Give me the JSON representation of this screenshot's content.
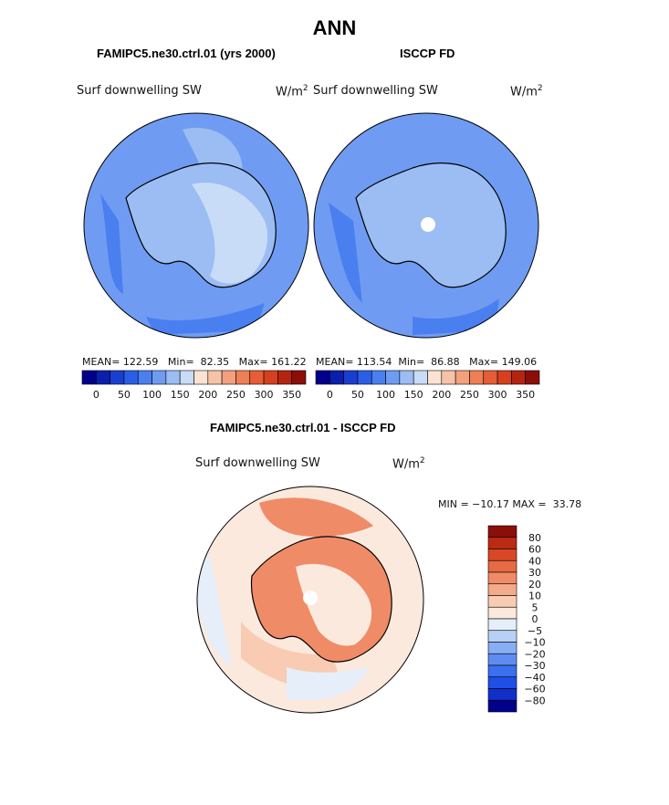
{
  "figure": {
    "title": "ANN"
  },
  "panels": [
    {
      "id": "model",
      "title": "FAMIPC5.ne30.ctrl.01 (yrs 2000)",
      "label": "Surf downwelling SW",
      "units_base": "W/m",
      "units_exp": "2",
      "stats": {
        "mean_label": "MEAN=",
        "mean": "122.59",
        "min_label": "Min=",
        "min": "82.35",
        "max_label": "Max=",
        "max": "161.22"
      }
    },
    {
      "id": "obs",
      "title": "ISCCP FD",
      "label": "Surf downwelling SW",
      "units_base": "W/m",
      "units_exp": "2",
      "stats": {
        "mean_label": "MEAN=",
        "mean": "113.54",
        "min_label": "Min=",
        "min": "86.88",
        "max_label": "Max=",
        "max": "149.06"
      }
    }
  ],
  "diff_panel": {
    "title": "FAMIPC5.ne30.ctrl.01 - ISCCP FD",
    "label": "Surf downwelling SW",
    "units_base": "W/m",
    "units_exp": "2",
    "minmax": "MIN = −10.17 MAX =  33.78"
  },
  "colorbars": {
    "abs": {
      "colors": [
        "#00008b",
        "#0a1fae",
        "#1a3fd0",
        "#2b5ee6",
        "#4a7ff0",
        "#6f9cf2",
        "#9bbdf4",
        "#c9dcf7",
        "#fbe3d4",
        "#f7c3a8",
        "#f3a07d",
        "#ee7f57",
        "#e65d36",
        "#d6401f",
        "#b52411",
        "#8b0f08"
      ],
      "tick_labels": [
        "0",
        "50",
        "100",
        "150",
        "200",
        "250",
        "300",
        "350"
      ]
    },
    "diff": {
      "colors": [
        "#00008b",
        "#1030c8",
        "#1f4fe6",
        "#3a6fee",
        "#5f8cf0",
        "#88aef3",
        "#b9d0f6",
        "#e6eefa",
        "#fbe9dd",
        "#f8cbb2",
        "#f4ab8b",
        "#f08b67",
        "#e86a45",
        "#d94826",
        "#bb2a13",
        "#8b0f08"
      ],
      "tick_labels": [
        "80",
        "60",
        "40",
        "30",
        "20",
        "10",
        "5",
        "0",
        "−5",
        "−10",
        "−20",
        "−30",
        "−40",
        "−60",
        "−80"
      ]
    }
  },
  "palette": {
    "ocean_mid": "#6f9cf2",
    "ocean_dark": "#4a7ff0",
    "land_light": "#9bbdf4",
    "land_lighter": "#c9dcf7",
    "pole": "#ffffff",
    "diff_pos": "#f08b67",
    "diff_weak": "#f8cbb2",
    "diff_faint": "#fbe9dd",
    "diff_neg": "#b9d0f6"
  }
}
